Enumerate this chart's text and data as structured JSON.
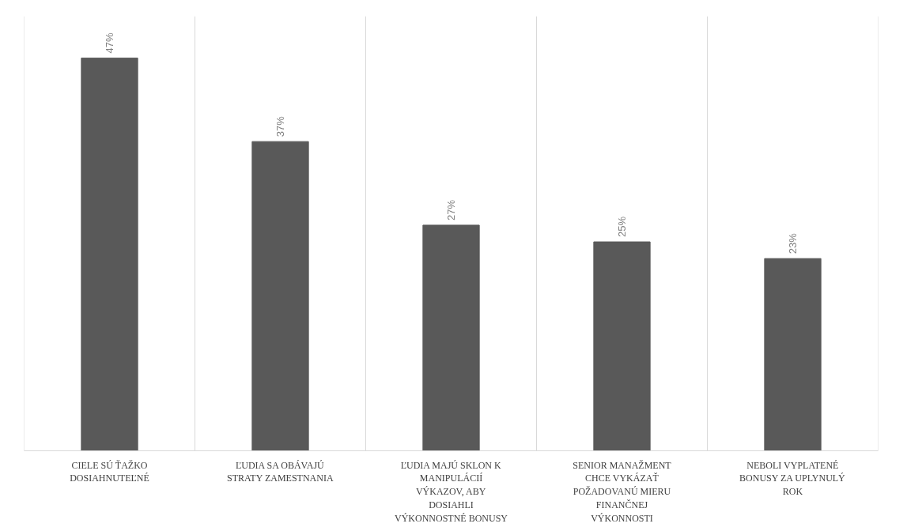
{
  "chart_data": {
    "type": "bar",
    "categories": [
      "CIELE SÚ ŤAŽKO DOSIAHNUTEĽNÉ",
      "ĽUDIA SA OBÁVAJÚ STRATY ZAMESTNANIA",
      "ĽUDIA MAJÚ SKLON K MANIPULÁCIÍ VÝKAZOV, ABY DOSIAHLI VÝKONNOSTNÉ BONUSY",
      "SENIOR MANAŽMENT CHCE VYKÁZAŤ POŽADOVANÚ MIERU FINANČNEJ VÝKONNOSTI",
      "NEBOLI VYPLATENÉ BONUSY ZA UPLYNULÝ ROK"
    ],
    "values": [
      47,
      37,
      27,
      25,
      23
    ],
    "value_labels": [
      "47%",
      "37%",
      "27%",
      "25%",
      "23%"
    ],
    "color": "#595959",
    "ylim": [
      0,
      52
    ],
    "grid": "x",
    "tick_labels": "x"
  }
}
